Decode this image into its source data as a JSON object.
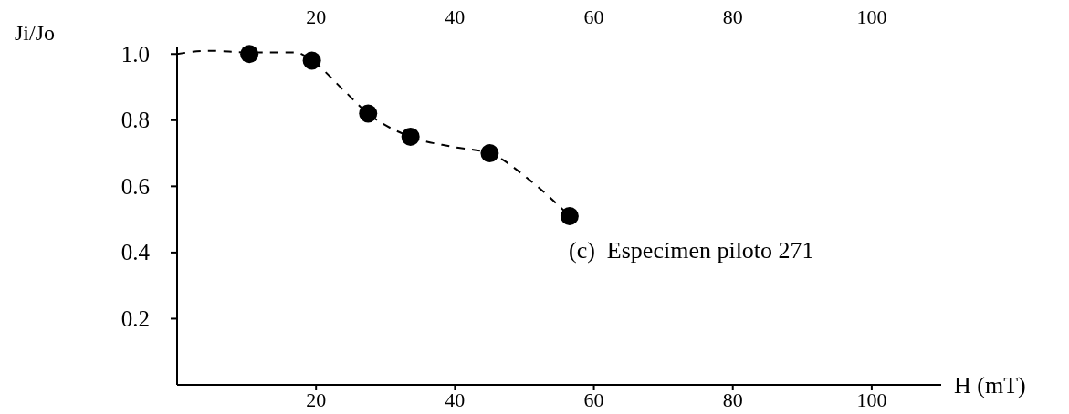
{
  "chart_data": {
    "type": "scatter",
    "xlabel": "H (mT)",
    "ylabel": "Ji/Jo",
    "xlim": [
      0,
      110
    ],
    "xticks": [
      20,
      40,
      60,
      80,
      100
    ],
    "x2lim": [
      0,
      110
    ],
    "x2ticks": [
      20,
      40,
      60,
      80,
      100
    ],
    "ylim": [
      0,
      1.02
    ],
    "yticks": [
      0.2,
      0.4,
      0.6,
      0.8,
      {
        "value": 1,
        "label": "1.0"
      }
    ],
    "grid": false,
    "series": [
      {
        "type": "line",
        "color": "#000000",
        "marker": "none",
        "line_style": "dashed",
        "x": [
          0,
          4.5,
          10.4,
          17,
          19.4,
          24,
          27.5,
          33.6,
          39.5,
          45,
          50.7,
          56.5
        ],
        "values": [
          1.0,
          1.01,
          1.005,
          1.005,
          0.98,
          0.89,
          0.82,
          0.75,
          0.72,
          0.7,
          0.62,
          0.51
        ]
      },
      {
        "color": "#000000",
        "marker": "circle",
        "x": [
          10.4,
          19.4,
          27.5,
          33.6,
          45,
          56.5
        ],
        "values": [
          1.0,
          0.98,
          0.82,
          0.75,
          0.7,
          0.51
        ]
      }
    ],
    "annotations": [
      "(c)  Especímen piloto 271"
    ]
  }
}
